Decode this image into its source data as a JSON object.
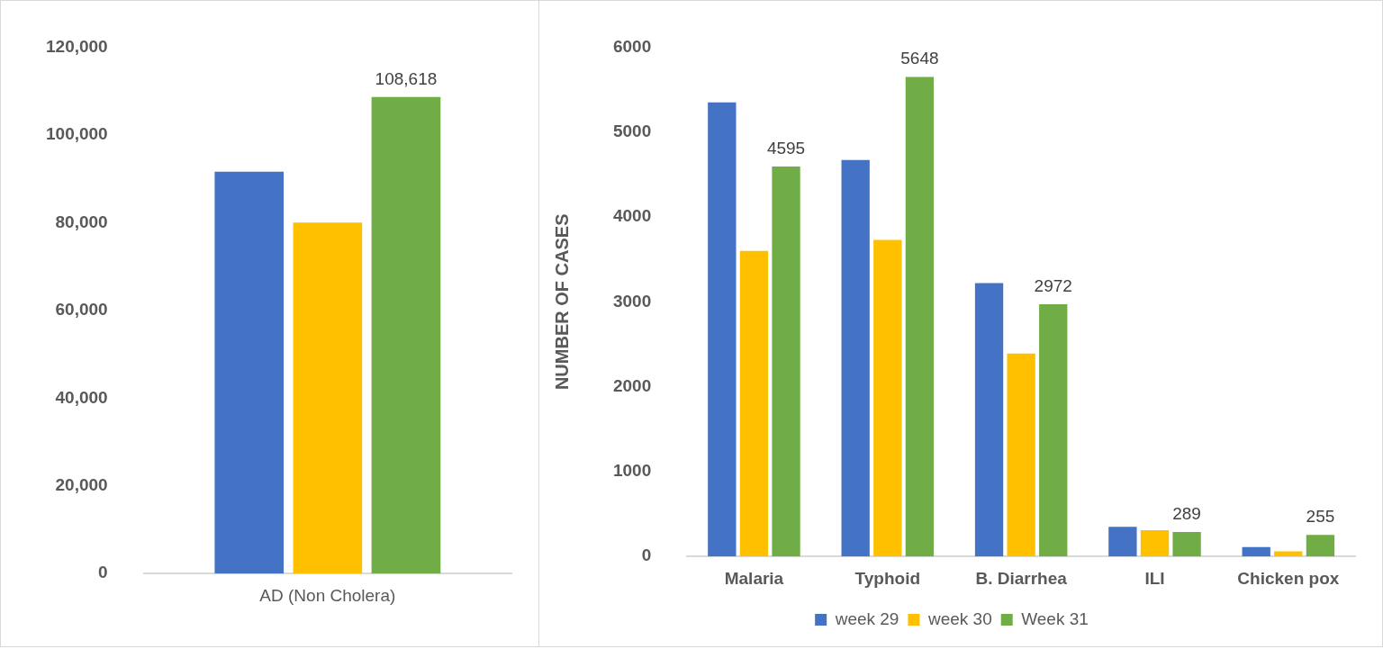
{
  "chart_data": [
    {
      "type": "bar",
      "categories": [
        "AD (Non Cholera)"
      ],
      "series": [
        {
          "color": "#4472c4",
          "values": [
            91600
          ]
        },
        {
          "color": "#ffc000",
          "values": [
            80000
          ]
        },
        {
          "color": "#70ad47",
          "values": [
            108618
          ],
          "value_labels": [
            "108,618"
          ]
        }
      ],
      "ylim": [
        0,
        120000
      ],
      "yticks": [
        {
          "value": 0,
          "label": "0"
        },
        {
          "value": 20000,
          "label": "20,000"
        },
        {
          "value": 40000,
          "label": "40,000"
        },
        {
          "value": 60000,
          "label": "60,000"
        },
        {
          "value": 80000,
          "label": "80,000"
        },
        {
          "value": 100000,
          "label": "100,000"
        },
        {
          "value": 120000,
          "label": "120,000"
        }
      ],
      "grid": false,
      "legend": false
    },
    {
      "type": "bar",
      "categories": [
        "Malaria",
        "Typhoid",
        "B. Diarrhea",
        "ILI",
        "Chicken pox"
      ],
      "series": [
        {
          "name": "week 29",
          "color": "#4472c4",
          "values": [
            5350,
            4670,
            3220,
            350,
            110
          ]
        },
        {
          "name": "week 30",
          "color": "#ffc000",
          "values": [
            3600,
            3730,
            2390,
            310,
            60
          ]
        },
        {
          "name": "Week 31",
          "color": "#70ad47",
          "values": [
            4595,
            5648,
            2972,
            289,
            255
          ],
          "value_labels": [
            "4595",
            "5648",
            "2972",
            "289",
            "255"
          ]
        }
      ],
      "ylabel": "NUMBER OF CASES",
      "ylim": [
        0,
        6000
      ],
      "yticks": [
        0,
        1000,
        2000,
        3000,
        4000,
        5000,
        6000
      ],
      "grid": false,
      "legend": "bottom"
    }
  ]
}
